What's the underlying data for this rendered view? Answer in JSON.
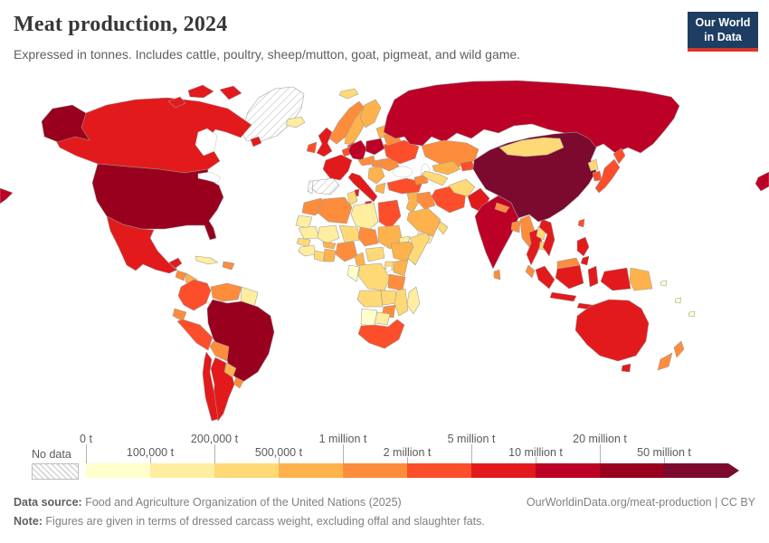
{
  "header": {
    "title": "Meat production, 2024",
    "subtitle": "Expressed in tonnes. Includes cattle, poultry, sheep/mutton, goat, pigmeat, and wild game.",
    "logo_line1": "Our World",
    "logo_line2": "in Data"
  },
  "colors": {
    "brand_navy": "#1d3d63",
    "brand_red": "#d8352c",
    "border_gray": "#9b9b9b"
  },
  "legend": {
    "no_data_label": "No data",
    "ticks": [
      "0 t",
      "100,000 t",
      "200,000 t",
      "500,000 t",
      "1 million t",
      "2 million t",
      "5 million t",
      "10 million t",
      "20 million t",
      "50 million t"
    ],
    "palette": [
      "#ffffcc",
      "#ffeda0",
      "#fed976",
      "#feb24c",
      "#fd8d3c",
      "#fc4e2a",
      "#e31a1c",
      "#bd0026",
      "#99001e",
      "#7c0a2e"
    ]
  },
  "map": {
    "countries": {
      "greenland": -1,
      "canada": 6,
      "united-states": 8,
      "mexico": 6,
      "guatemala": 4,
      "honduras-nicaragua": 3,
      "costa-rica-panama": 2,
      "cuba": 1,
      "hispaniola": 4,
      "colombia": 5,
      "venezuela": 4,
      "guyanas": 1,
      "ecuador": 4,
      "peru": 5,
      "brazil": 8,
      "bolivia": 4,
      "paraguay": 3,
      "uruguay": 4,
      "argentina": 6,
      "chile": 6,
      "iceland": 1,
      "svalbard": 2,
      "norway": 4,
      "sweden": 3,
      "finland": 3,
      "denmark": 5,
      "baltics": 3,
      "united-kingdom": 6,
      "ireland": 5,
      "france": 6,
      "benelux": 5,
      "germany": 7,
      "poland": 7,
      "czech-austria": 4,
      "italy": 6,
      "hungary": 4,
      "balkans": 3,
      "greece": 3,
      "romania": 4,
      "ukraine": 5,
      "belarus": 4,
      "russia": 7,
      "turkey": 5,
      "levant": 3,
      "iraq": 4,
      "iran": 5,
      "caucasus": 4,
      "saudi-arabia": 3,
      "yemen": 1,
      "oman": 2,
      "kazakhstan": 4,
      "uzbekistan": 3,
      "turkmenistan": 2,
      "kyrgyzstan": 5,
      "afghanistan": 2,
      "pakistan": 6,
      "india": 7,
      "nepal": 4,
      "bangladesh": 4,
      "sri-lanka": 4,
      "myanmar": 4,
      "thailand": 6,
      "laos": 2,
      "cambodia": 2,
      "vietnam": 6,
      "malaysia": 4,
      "china": 9,
      "mongolia": 2,
      "north-korea": 2,
      "south-korea": 5,
      "japan": 5,
      "taiwan": 5,
      "philippines": 6,
      "indonesia": 6,
      "papua-new-guinea": 3,
      "pacific-islands": 0,
      "australia": 6,
      "new-zealand": 4,
      "morocco": 4,
      "western-sahara": 1,
      "mauritania": 1,
      "algeria": 4,
      "tunisia": 2,
      "libya": 1,
      "egypt": 5,
      "mali": 1,
      "niger": 2,
      "chad": 4,
      "sudan": 3,
      "eritrea": 1,
      "senegal": 2,
      "guinea-region": 1,
      "ivory-coast": 2,
      "ghana": 3,
      "burkina-faso": 3,
      "nigeria": 4,
      "cameroon": 3,
      "central-african-republic": 2,
      "ethiopia": 3,
      "somalia": 2,
      "kenya": 3,
      "uganda": 2,
      "dr-congo": 2,
      "congo-gabon": 0,
      "tanzania": 4,
      "angola": 2,
      "zambia": 2,
      "mozambique": 2,
      "zimbabwe": 4,
      "namibia": 0,
      "botswana": 1,
      "south-africa": 5,
      "madagascar": 1
    }
  },
  "chart_data": {
    "type": "heatmap",
    "subtype": "choropleth-world-map",
    "title": "Meat production, 2024",
    "unit": "tonnes",
    "legend_position": "bottom",
    "bin_edges_tonnes": [
      0,
      100000,
      200000,
      500000,
      1000000,
      2000000,
      5000000,
      10000000,
      20000000,
      50000000
    ],
    "bin_labels": [
      "0–100,000 t",
      "100,000–200,000 t",
      "200,000–500,000 t",
      "500,000–1 million t",
      "1–2 million t",
      "2–5 million t",
      "5–10 million t",
      "10–20 million t",
      "20–50 million t",
      "50 million t +"
    ],
    "bin_colors": [
      "#ffffcc",
      "#ffeda0",
      "#fed976",
      "#feb24c",
      "#fd8d3c",
      "#fc4e2a",
      "#e31a1c",
      "#bd0026",
      "#99001e",
      "#7c0a2e"
    ],
    "no_data": [
      "Greenland"
    ],
    "values_by_bin": {
      "50 million t +": [
        "China"
      ],
      "20–50 million t": [
        "United States",
        "Brazil"
      ],
      "10–20 million t": [
        "Russia",
        "India",
        "Germany",
        "Poland"
      ],
      "5–10 million t": [
        "Canada",
        "Mexico",
        "Argentina",
        "Chile",
        "France",
        "Spain",
        "United Kingdom",
        "Italy",
        "Pakistan",
        "Thailand",
        "Vietnam",
        "Philippines",
        "Indonesia",
        "Australia"
      ],
      "2–5 million t": [
        "Colombia",
        "Peru",
        "Ireland",
        "Netherlands/Belgium",
        "Denmark",
        "Ukraine",
        "Turkey",
        "Iran",
        "Egypt",
        "South Africa",
        "Japan",
        "South Korea",
        "Taiwan",
        "Kyrgyzstan"
      ],
      "1–2 million t": [
        "Norway",
        "Portugal",
        "Morocco",
        "Algeria",
        "Chad",
        "Nigeria",
        "Tanzania",
        "Zimbabwe",
        "Venezuela",
        "Ecuador",
        "Bolivia",
        "Uruguay",
        "Dominican Republic",
        "Guatemala",
        "Kazakhstan",
        "Iraq",
        "Belarus",
        "Nepal",
        "Bangladesh",
        "Sri Lanka",
        "Myanmar",
        "Malaysia",
        "New Zealand",
        "Hungary",
        "Austria/Czechia",
        "Romania"
      ],
      "500,000–1 million t": [
        "Sweden",
        "Finland",
        "Baltic states",
        "Balkans",
        "Greece",
        "Levant",
        "Saudi Arabia",
        "Uzbekistan",
        "Sudan",
        "Ghana",
        "Burkina Faso",
        "Cameroon",
        "Ethiopia",
        "Kenya",
        "Honduras/Nicaragua",
        "Paraguay",
        "Papua New Guinea"
      ],
      "200,000–500,000 t": [
        "Tunisia",
        "Niger",
        "Senegal",
        "Côte d'Ivoire",
        "Central African Republic",
        "Somalia",
        "Uganda",
        "DR Congo",
        "Angola",
        "Zambia",
        "Mozambique",
        "Mongolia",
        "North Korea",
        "Laos",
        "Cambodia",
        "Afghanistan",
        "Turkmenistan",
        "Oman",
        "Costa Rica/Panama"
      ],
      "100,000–200,000 t": [
        "Cuba",
        "Guyanas",
        "Iceland",
        "Yemen",
        "Western Sahara",
        "Mauritania",
        "Libya",
        "Mali",
        "Guinea region",
        "Eritrea",
        "Madagascar",
        "Botswana"
      ],
      "0–100,000 t": [
        "Congo/Gabon",
        "Namibia",
        "Pacific islands"
      ]
    }
  },
  "footer": {
    "source_label": "Data source:",
    "source_text": " Food and Agriculture Organization of the United Nations (2025)",
    "url_text": "OurWorldinData.org/meat-production | CC BY",
    "note_label": "Note:",
    "note_text": " Figures are given in terms of dressed carcass weight, excluding offal and slaughter fats."
  }
}
